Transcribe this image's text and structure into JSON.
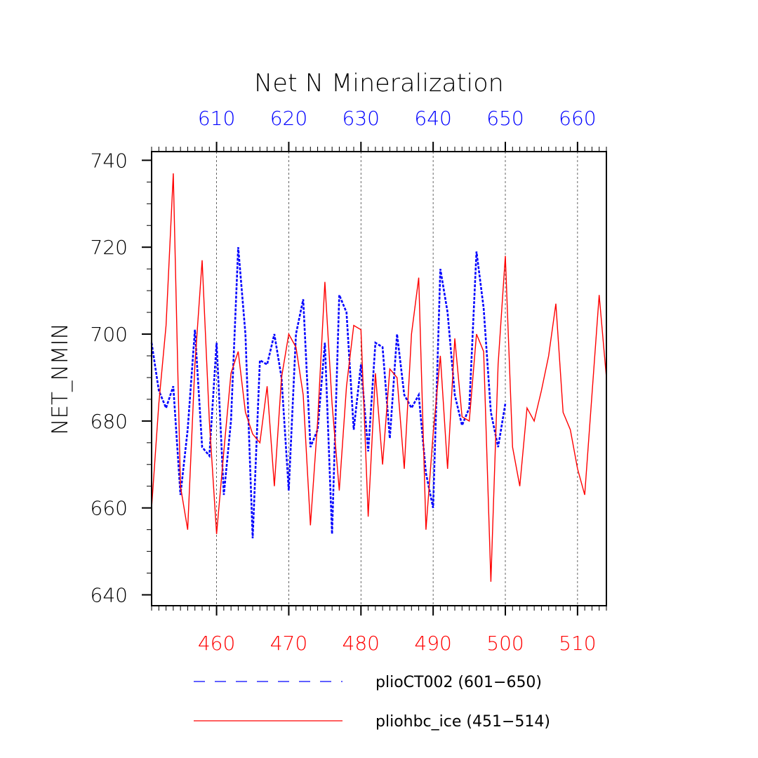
{
  "chart_data": {
    "type": "line",
    "title": "Net N Mineralization",
    "ylabel": "NET_NMIN",
    "ylim": [
      637.5,
      742
    ],
    "yticks": [
      640,
      660,
      680,
      700,
      720,
      740
    ],
    "bottom_axis": {
      "xlim": [
        451,
        514
      ],
      "ticks": [
        460,
        470,
        480,
        490,
        500,
        510
      ],
      "color": "#ff0000"
    },
    "top_axis": {
      "xlim": [
        601,
        664
      ],
      "ticks": [
        610,
        620,
        630,
        640,
        650,
        660
      ],
      "color": "#0000ff"
    },
    "grid": "vertical-dashed",
    "series": [
      {
        "name": "plioCT002 (601−650)",
        "color": "#0000ff",
        "dash": "dashed",
        "axis": "top",
        "x": [
          601,
          602,
          603,
          604,
          605,
          606,
          607,
          608,
          609,
          610,
          611,
          612,
          613,
          614,
          615,
          616,
          617,
          618,
          619,
          620,
          621,
          622,
          623,
          624,
          625,
          626,
          627,
          628,
          629,
          630,
          631,
          632,
          633,
          634,
          635,
          636,
          637,
          638,
          639,
          640,
          641,
          642,
          643,
          644,
          645,
          646,
          647,
          648,
          649,
          650
        ],
        "values": [
          698,
          687,
          683,
          688,
          663,
          678,
          701,
          674,
          672,
          698,
          663,
          680,
          720,
          700,
          653,
          694,
          693,
          700,
          690,
          664,
          700,
          708,
          674,
          678,
          698,
          654,
          709,
          705,
          678,
          693,
          673,
          698,
          697,
          676,
          700,
          686,
          683,
          686,
          668,
          660,
          715,
          705,
          686,
          679,
          683,
          719,
          706,
          682,
          674,
          684
        ]
      },
      {
        "name": "pliohbc_ice (451−514)",
        "color": "#ff0000",
        "dash": "solid",
        "axis": "bottom",
        "x": [
          451,
          452,
          453,
          454,
          455,
          456,
          457,
          458,
          459,
          460,
          461,
          462,
          463,
          464,
          465,
          466,
          467,
          468,
          469,
          470,
          471,
          472,
          473,
          474,
          475,
          476,
          477,
          478,
          479,
          480,
          481,
          482,
          483,
          484,
          485,
          486,
          487,
          488,
          489,
          490,
          491,
          492,
          493,
          494,
          495,
          496,
          497,
          498,
          499,
          500,
          501,
          502,
          503,
          504,
          505,
          506,
          507,
          508,
          509,
          510,
          511,
          512,
          513,
          514
        ],
        "values": [
          660,
          684,
          702,
          737,
          665,
          655,
          693,
          717,
          680,
          654,
          673,
          691,
          696,
          682,
          677,
          675,
          688,
          665,
          690,
          700,
          697,
          686,
          656,
          680,
          712,
          684,
          664,
          688,
          702,
          701,
          658,
          691,
          670,
          692,
          690,
          669,
          700,
          713,
          655,
          677,
          695,
          669,
          699,
          681,
          680,
          700,
          696,
          643,
          693,
          718,
          674,
          665,
          683,
          680,
          687,
          695,
          707,
          682,
          678,
          669,
          663,
          686,
          709,
          690
        ]
      }
    ]
  }
}
